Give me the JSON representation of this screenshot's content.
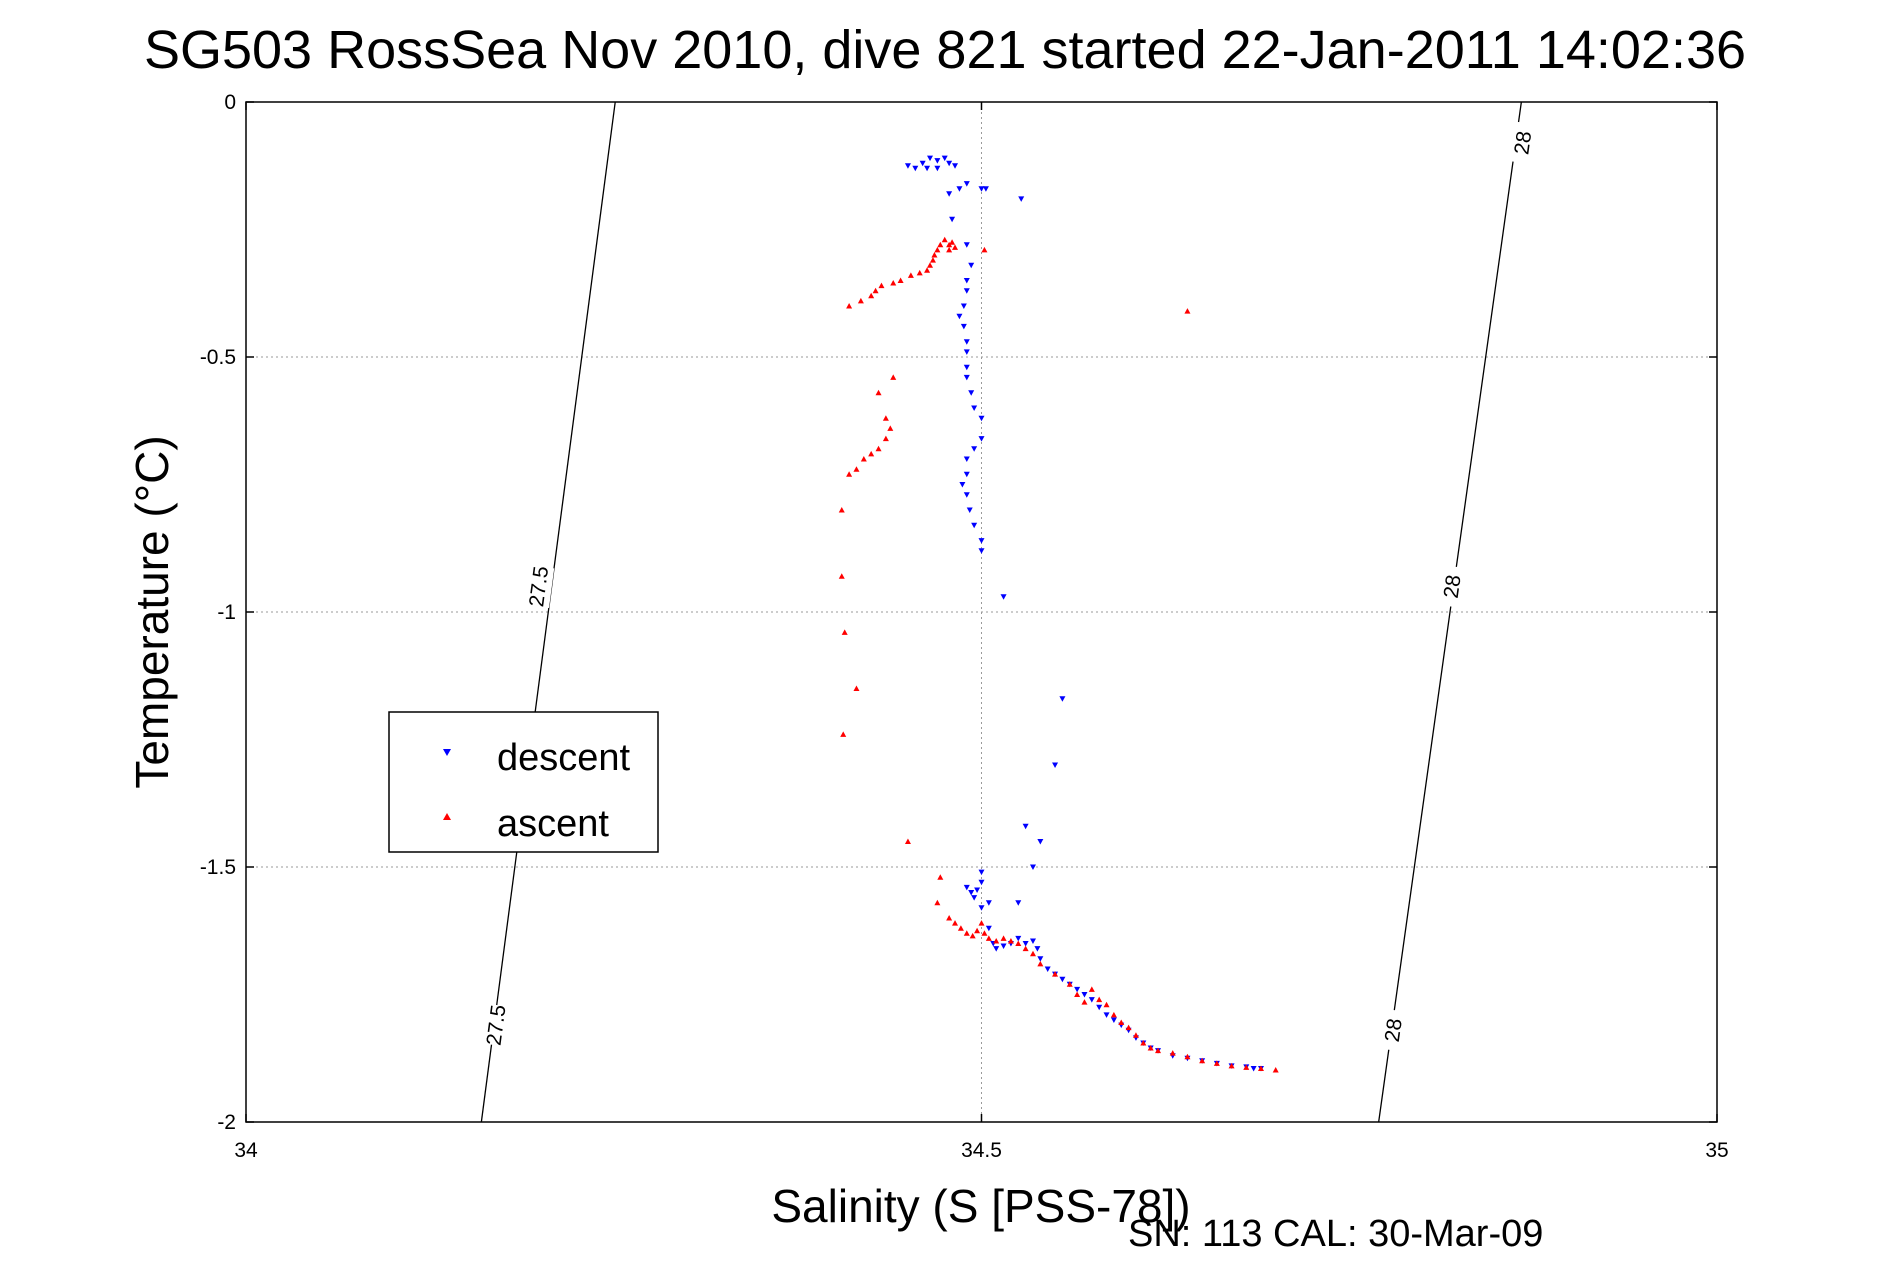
{
  "chart_data": {
    "type": "scatter",
    "title": "SG503 RossSea Nov 2010, dive 821 started 22-Jan-2011 14:02:36",
    "xlabel": "Salinity (S [PSS-78])",
    "ylabel": "Temperature (°C)",
    "xlim": [
      34,
      35
    ],
    "ylim": [
      -2,
      0
    ],
    "xticks": [
      "34",
      "34.5",
      "35"
    ],
    "yticks": [
      "0",
      "-0.5",
      "-1",
      "-1.5",
      "-2"
    ],
    "grid": true,
    "legend_position": "left-middle",
    "legend": [
      "descent",
      "ascent"
    ],
    "footer": "SN: 113  CAL: 30-Mar-09",
    "contours": [
      {
        "level": "27.5",
        "points": [
          [
            34.251,
            0.0
          ],
          [
            34.16,
            -2.0
          ]
        ],
        "labels": [
          {
            "x": 34.199,
            "y": -0.95,
            "text": "27.5"
          },
          {
            "x": 34.17,
            "y": -1.81,
            "text": "27.5"
          }
        ]
      },
      {
        "level": "28",
        "points": [
          [
            34.867,
            0.0
          ],
          [
            34.77,
            -2.0
          ]
        ],
        "labels": [
          {
            "x": 34.868,
            "y": -0.08,
            "text": "28"
          },
          {
            "x": 34.82,
            "y": -0.95,
            "text": "28"
          },
          {
            "x": 34.78,
            "y": -1.82,
            "text": "28"
          }
        ]
      }
    ],
    "series": [
      {
        "name": "descent",
        "color": "#0000ff",
        "marker": "triangle-down",
        "points": [
          [
            34.46,
            -0.12
          ],
          [
            34.465,
            -0.11
          ],
          [
            34.47,
            -0.115
          ],
          [
            34.475,
            -0.11
          ],
          [
            34.478,
            -0.12
          ],
          [
            34.482,
            -0.125
          ],
          [
            34.47,
            -0.13
          ],
          [
            34.463,
            -0.13
          ],
          [
            34.45,
            -0.125
          ],
          [
            34.455,
            -0.13
          ],
          [
            34.49,
            -0.16
          ],
          [
            34.5,
            -0.17
          ],
          [
            34.503,
            -0.17
          ],
          [
            34.485,
            -0.17
          ],
          [
            34.478,
            -0.18
          ],
          [
            34.527,
            -0.19
          ],
          [
            34.48,
            -0.23
          ],
          [
            34.49,
            -0.28
          ],
          [
            34.493,
            -0.32
          ],
          [
            34.49,
            -0.35
          ],
          [
            34.49,
            -0.37
          ],
          [
            34.488,
            -0.4
          ],
          [
            34.485,
            -0.42
          ],
          [
            34.488,
            -0.44
          ],
          [
            34.49,
            -0.47
          ],
          [
            34.49,
            -0.49
          ],
          [
            34.49,
            -0.52
          ],
          [
            34.49,
            -0.54
          ],
          [
            34.493,
            -0.57
          ],
          [
            34.495,
            -0.6
          ],
          [
            34.5,
            -0.62
          ],
          [
            34.5,
            -0.66
          ],
          [
            34.495,
            -0.68
          ],
          [
            34.49,
            -0.7
          ],
          [
            34.49,
            -0.73
          ],
          [
            34.487,
            -0.75
          ],
          [
            34.49,
            -0.77
          ],
          [
            34.492,
            -0.8
          ],
          [
            34.495,
            -0.83
          ],
          [
            34.5,
            -0.86
          ],
          [
            34.5,
            -0.88
          ],
          [
            34.515,
            -0.97
          ],
          [
            34.555,
            -1.17
          ],
          [
            34.55,
            -1.3
          ],
          [
            34.53,
            -1.42
          ],
          [
            34.54,
            -1.45
          ],
          [
            34.535,
            -1.5
          ],
          [
            34.525,
            -1.57
          ],
          [
            34.5,
            -1.51
          ],
          [
            34.5,
            -1.53
          ],
          [
            34.49,
            -1.54
          ],
          [
            34.493,
            -1.55
          ],
          [
            34.497,
            -1.545
          ],
          [
            34.495,
            -1.56
          ],
          [
            34.505,
            -1.57
          ],
          [
            34.5,
            -1.58
          ],
          [
            34.505,
            -1.62
          ],
          [
            34.508,
            -1.65
          ],
          [
            34.51,
            -1.66
          ],
          [
            34.515,
            -1.655
          ],
          [
            34.52,
            -1.65
          ],
          [
            34.525,
            -1.64
          ],
          [
            34.53,
            -1.65
          ],
          [
            34.535,
            -1.645
          ],
          [
            34.538,
            -1.66
          ],
          [
            34.54,
            -1.68
          ],
          [
            34.545,
            -1.7
          ],
          [
            34.55,
            -1.71
          ],
          [
            34.555,
            -1.72
          ],
          [
            34.56,
            -1.73
          ],
          [
            34.565,
            -1.74
          ],
          [
            34.57,
            -1.75
          ],
          [
            34.575,
            -1.76
          ],
          [
            34.58,
            -1.775
          ],
          [
            34.585,
            -1.79
          ],
          [
            34.59,
            -1.8
          ],
          [
            34.595,
            -1.81
          ],
          [
            34.6,
            -1.82
          ],
          [
            34.605,
            -1.835
          ],
          [
            34.61,
            -1.845
          ],
          [
            34.615,
            -1.855
          ],
          [
            34.62,
            -1.86
          ],
          [
            34.63,
            -1.87
          ],
          [
            34.64,
            -1.875
          ],
          [
            34.65,
            -1.88
          ],
          [
            34.66,
            -1.885
          ],
          [
            34.67,
            -1.89
          ],
          [
            34.68,
            -1.892
          ],
          [
            34.685,
            -1.895
          ],
          [
            34.69,
            -1.895
          ]
        ]
      },
      {
        "name": "ascent",
        "color": "#ff0000",
        "marker": "triangle-up",
        "points": [
          [
            34.475,
            -0.27
          ],
          [
            34.478,
            -0.28
          ],
          [
            34.48,
            -0.275
          ],
          [
            34.482,
            -0.285
          ],
          [
            34.478,
            -0.29
          ],
          [
            34.472,
            -0.28
          ],
          [
            34.47,
            -0.29
          ],
          [
            34.468,
            -0.3
          ],
          [
            34.467,
            -0.31
          ],
          [
            34.465,
            -0.32
          ],
          [
            34.463,
            -0.33
          ],
          [
            34.458,
            -0.335
          ],
          [
            34.452,
            -0.34
          ],
          [
            34.445,
            -0.35
          ],
          [
            34.44,
            -0.355
          ],
          [
            34.432,
            -0.36
          ],
          [
            34.428,
            -0.37
          ],
          [
            34.425,
            -0.38
          ],
          [
            34.418,
            -0.39
          ],
          [
            34.41,
            -0.4
          ],
          [
            34.502,
            -0.29
          ],
          [
            34.64,
            -0.41
          ],
          [
            34.44,
            -0.54
          ],
          [
            34.43,
            -0.57
          ],
          [
            34.435,
            -0.62
          ],
          [
            34.438,
            -0.64
          ],
          [
            34.435,
            -0.66
          ],
          [
            34.43,
            -0.68
          ],
          [
            34.425,
            -0.69
          ],
          [
            34.42,
            -0.7
          ],
          [
            34.415,
            -0.72
          ],
          [
            34.41,
            -0.73
          ],
          [
            34.405,
            -0.8
          ],
          [
            34.405,
            -0.93
          ],
          [
            34.407,
            -1.04
          ],
          [
            34.415,
            -1.15
          ],
          [
            34.406,
            -1.24
          ],
          [
            34.45,
            -1.45
          ],
          [
            34.472,
            -1.52
          ],
          [
            34.47,
            -1.57
          ],
          [
            34.478,
            -1.6
          ],
          [
            34.482,
            -1.61
          ],
          [
            34.486,
            -1.62
          ],
          [
            34.49,
            -1.63
          ],
          [
            34.494,
            -1.635
          ],
          [
            34.497,
            -1.625
          ],
          [
            34.5,
            -1.61
          ],
          [
            34.502,
            -1.63
          ],
          [
            34.505,
            -1.64
          ],
          [
            34.51,
            -1.645
          ],
          [
            34.515,
            -1.64
          ],
          [
            34.52,
            -1.645
          ],
          [
            34.525,
            -1.65
          ],
          [
            34.53,
            -1.66
          ],
          [
            34.535,
            -1.67
          ],
          [
            34.54,
            -1.69
          ],
          [
            34.55,
            -1.71
          ],
          [
            34.56,
            -1.73
          ],
          [
            34.565,
            -1.75
          ],
          [
            34.57,
            -1.765
          ],
          [
            34.575,
            -1.74
          ],
          [
            34.58,
            -1.76
          ],
          [
            34.585,
            -1.77
          ],
          [
            34.59,
            -1.79
          ],
          [
            34.595,
            -1.805
          ],
          [
            34.6,
            -1.815
          ],
          [
            34.605,
            -1.83
          ],
          [
            34.61,
            -1.845
          ],
          [
            34.615,
            -1.855
          ],
          [
            34.62,
            -1.86
          ],
          [
            34.63,
            -1.865
          ],
          [
            34.64,
            -1.872
          ],
          [
            34.65,
            -1.88
          ],
          [
            34.66,
            -1.885
          ],
          [
            34.67,
            -1.89
          ],
          [
            34.68,
            -1.893
          ],
          [
            34.69,
            -1.895
          ],
          [
            34.7,
            -1.898
          ]
        ]
      }
    ]
  }
}
